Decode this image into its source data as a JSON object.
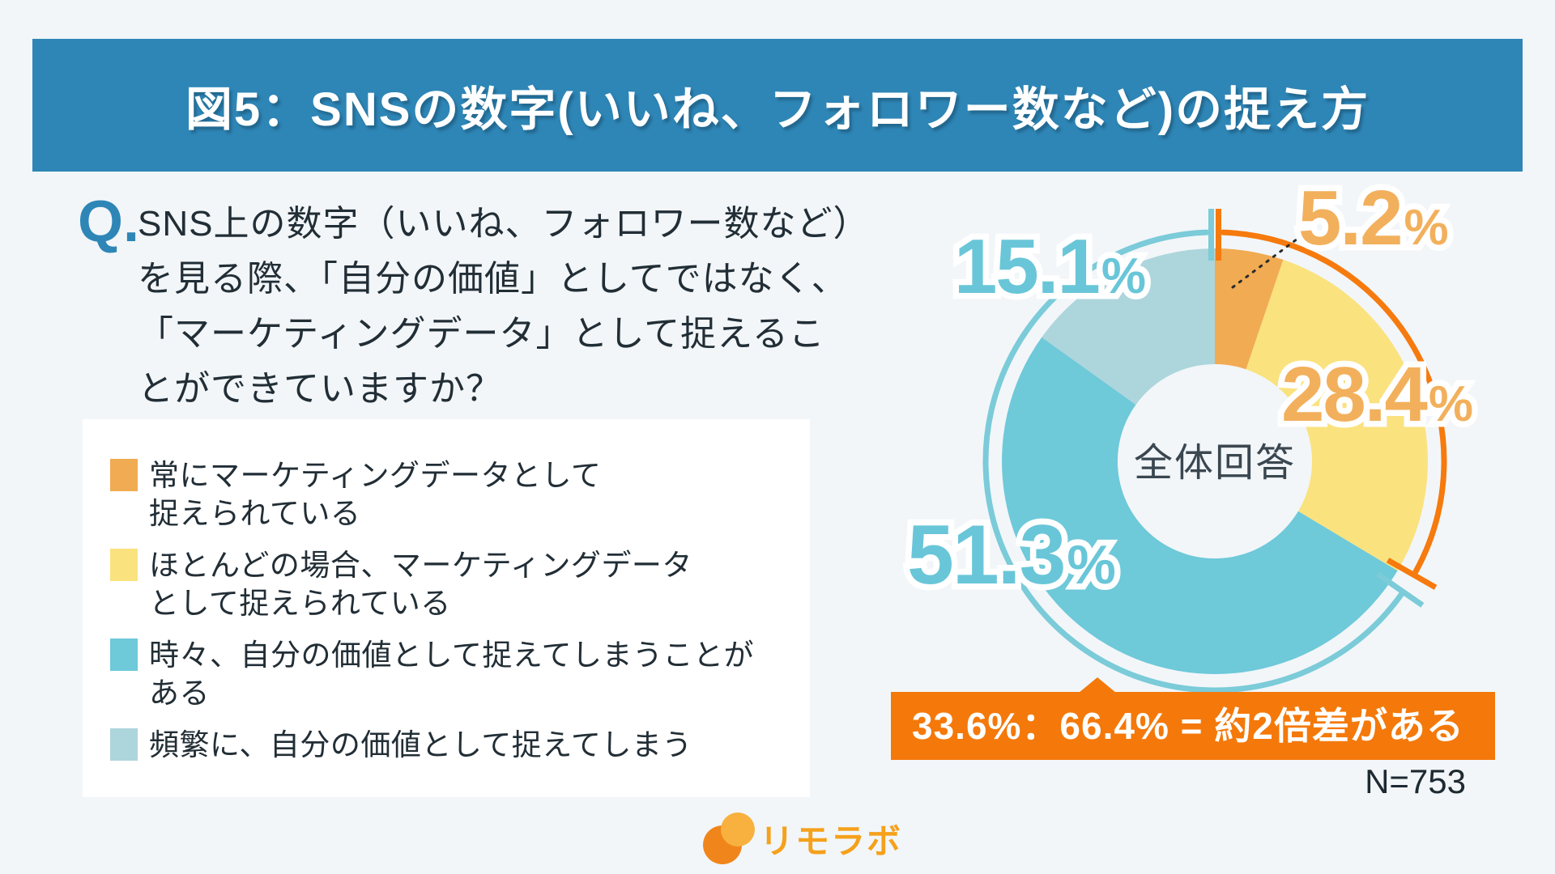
{
  "header": {
    "title": "図5：SNSの数字(いいね、フォロワー数など)の捉え方"
  },
  "question": {
    "prefix": "Q.",
    "lines": [
      "SNS上の数字（いいね、フォロワー数など）",
      "を見る際、「自分の価値」としてではなく、",
      "「マーケティングデータ」として捉えるこ",
      "とができていますか？"
    ]
  },
  "legend": {
    "items": [
      {
        "color": "#F1AB52",
        "lines": [
          "常にマーケティングデータとして",
          "捉えられている"
        ]
      },
      {
        "color": "#FAE27E",
        "lines": [
          "ほとんどの場合、マーケティングデータ",
          "として捉えられている"
        ]
      },
      {
        "color": "#6EC9D9",
        "lines": [
          "時々、自分の価値として捉えてしまうことが",
          "ある"
        ]
      },
      {
        "color": "#ADD5DC",
        "lines": [
          "頻繁に、自分の価値として捉えてしまう"
        ]
      }
    ]
  },
  "chart_data": {
    "type": "pie",
    "subtype": "donut",
    "center_label": "全体回答",
    "categories": [
      "常にマーケティングデータとして捉えられている",
      "ほとんどの場合、マーケティングデータとして捉えられている",
      "時々、自分の価値として捉えてしまうことがある",
      "頻繁に、自分の価値として捉えてしまう"
    ],
    "values": [
      5.2,
      28.4,
      51.3,
      15.1
    ],
    "unit": "%",
    "colors": [
      "#F1AB52",
      "#FAE27E",
      "#6EC9D9",
      "#ADD5DC"
    ],
    "start_angle_deg": 0,
    "direction": "clockwise",
    "group_arcs": {
      "marketing_total_pct": 33.6,
      "self_worth_total_pct": 66.4,
      "right_arc_color": "#F67A0D",
      "left_arc_color": "#7BCBD9"
    },
    "annotation": "33.6%：66.4% = 約2倍差がある",
    "sample_size": "N=753",
    "legend_position": "left"
  },
  "donut": {
    "labels": [
      {
        "value": "5.2",
        "suffix": "%",
        "color": "#F2B05C"
      },
      {
        "value": "28.4",
        "suffix": "%",
        "color": "#F2B05C"
      },
      {
        "value": "51.3",
        "suffix": "%",
        "color": "#69C6D8"
      },
      {
        "value": "15.1",
        "suffix": "%",
        "color": "#69C6D8"
      }
    ]
  },
  "banner": {
    "text": "33.6%：66.4% = 約2倍差がある"
  },
  "footer": {
    "logo_text": "リモラボ"
  }
}
